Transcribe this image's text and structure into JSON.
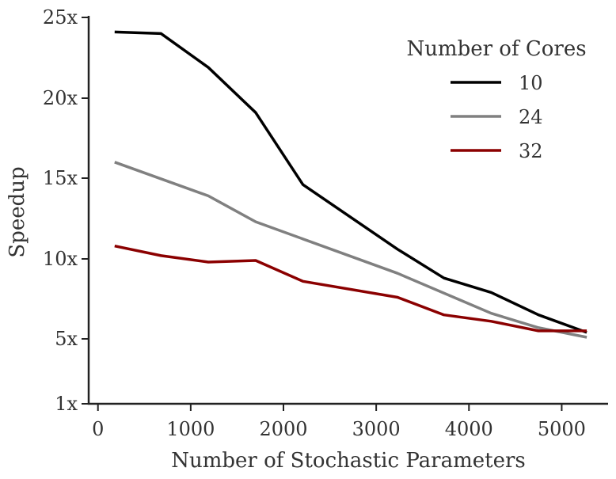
{
  "chart_data": {
    "type": "line",
    "title": "",
    "xlabel": "Number of Stochastic Parameters",
    "ylabel": "Speedup",
    "xlim": [
      -100,
      5500
    ],
    "ylim": [
      1,
      25
    ],
    "x_ticks": [
      {
        "value": 0,
        "label": "0"
      },
      {
        "value": 1000,
        "label": "1000"
      },
      {
        "value": 2000,
        "label": "2000"
      },
      {
        "value": 3000,
        "label": "3000"
      },
      {
        "value": 4000,
        "label": "4000"
      },
      {
        "value": 5000,
        "label": "5000"
      }
    ],
    "y_ticks": [
      {
        "value": 1,
        "label": "1x"
      },
      {
        "value": 5,
        "label": "5x"
      },
      {
        "value": 10,
        "label": "10x"
      },
      {
        "value": 15,
        "label": "15x"
      },
      {
        "value": 20,
        "label": "20x"
      },
      {
        "value": 25,
        "label": "25x"
      }
    ],
    "legend": {
      "title": "Number of Cores",
      "position": "top-right"
    },
    "series": [
      {
        "name": "10",
        "color": "#000000",
        "x": [
          180,
          680,
          1190,
          1700,
          2210,
          3230,
          3730,
          4240,
          4750,
          5270
        ],
        "y": [
          24.1,
          24.0,
          21.9,
          19.1,
          14.6,
          10.6,
          8.8,
          7.9,
          6.5,
          5.4
        ]
      },
      {
        "name": "24",
        "color": "#808080",
        "x": [
          180,
          1190,
          1700,
          3230,
          4240,
          4750,
          5270
        ],
        "y": [
          16.0,
          13.9,
          12.3,
          9.1,
          6.6,
          5.7,
          5.1
        ]
      },
      {
        "name": "32",
        "color": "#8b0000",
        "x": [
          180,
          680,
          1190,
          1700,
          2210,
          3230,
          3730,
          4240,
          4750,
          5270
        ],
        "y": [
          10.8,
          10.2,
          9.8,
          9.9,
          8.6,
          7.6,
          6.5,
          6.1,
          5.5,
          5.5
        ]
      }
    ]
  }
}
